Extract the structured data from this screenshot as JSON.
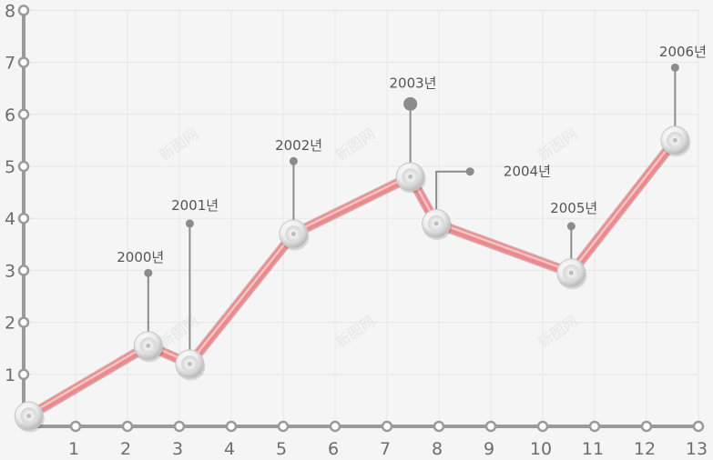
{
  "chart_data": {
    "type": "line",
    "title": "",
    "xlabel": "",
    "ylabel": "",
    "xlim": [
      0,
      13
    ],
    "ylim": [
      0,
      8
    ],
    "grid": true,
    "x_ticks": [
      1,
      2,
      3,
      4,
      5,
      6,
      7,
      8,
      9,
      10,
      11,
      12,
      13
    ],
    "y_ticks": [
      1,
      2,
      3,
      4,
      5,
      6,
      7,
      8
    ],
    "x_tick_labels": [
      "1",
      "2",
      "3",
      "4",
      "5",
      "6",
      "7",
      "8",
      "9",
      "10",
      "11",
      "12",
      "13"
    ],
    "y_tick_labels": [
      "1",
      "2",
      "3",
      "4",
      "5",
      "6",
      "7",
      "8"
    ],
    "x": [
      0.1,
      2.4,
      3.2,
      5.2,
      7.45,
      7.95,
      10.55,
      12.55
    ],
    "values": [
      0.2,
      1.55,
      1.2,
      3.7,
      4.8,
      3.9,
      2.95,
      5.5
    ],
    "annotations": [
      {
        "label": "2000년",
        "point_index": 1,
        "pin": [
          2.4,
          2.95
        ],
        "label_pos": [
          2.25,
          3.25
        ]
      },
      {
        "label": "2001년",
        "point_index": 2,
        "pin": [
          3.2,
          3.9
        ],
        "label_pos": [
          3.3,
          4.25
        ]
      },
      {
        "label": "2002년",
        "point_index": 3,
        "pin": [
          5.2,
          5.1
        ],
        "label_pos": [
          5.3,
          5.4
        ]
      },
      {
        "label": "2003년",
        "point_index": 4,
        "pin": [
          7.45,
          6.2
        ],
        "label_pos": [
          7.5,
          6.6
        ]
      },
      {
        "label": "2004년",
        "point_index": 5,
        "pin": [
          8.6,
          4.9
        ],
        "label_pos": [
          9.7,
          4.9
        ]
      },
      {
        "label": "2005년",
        "point_index": 6,
        "pin": [
          10.55,
          3.85
        ],
        "label_pos": [
          10.6,
          4.2
        ]
      },
      {
        "label": "2006년",
        "point_index": 7,
        "pin": [
          12.55,
          6.9
        ],
        "label_pos": [
          12.7,
          7.2
        ]
      }
    ],
    "colors": {
      "line": "#e98a8e",
      "line_highlight": "#f7c3c3",
      "line_shadow": "#c9676c",
      "axis": "#9a9a9a",
      "grid": "#e6e6e6",
      "pin": "#8c8c8c",
      "background": "#f5f5f5"
    },
    "watermark_text": "新图网"
  }
}
